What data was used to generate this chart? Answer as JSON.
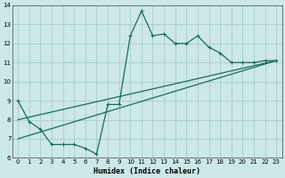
{
  "title": "",
  "xlabel": "Humidex (Indice chaleur)",
  "bg_color": "#cce8e8",
  "grid_color": "#aacccc",
  "line_color": "#1a6b5a",
  "xlim": [
    -0.5,
    23.5
  ],
  "ylim": [
    6,
    14
  ],
  "xticks": [
    0,
    1,
    2,
    3,
    4,
    5,
    6,
    7,
    8,
    9,
    10,
    11,
    12,
    13,
    14,
    15,
    16,
    17,
    18,
    19,
    20,
    21,
    22,
    23
  ],
  "yticks": [
    6,
    7,
    8,
    9,
    10,
    11,
    12,
    13,
    14
  ],
  "line1_x": [
    0,
    1,
    2,
    3,
    4,
    5,
    6,
    7,
    8,
    9,
    10,
    11,
    12,
    13,
    14,
    15,
    16,
    17,
    18,
    19,
    20,
    21,
    22,
    23
  ],
  "line1_y": [
    9.0,
    7.9,
    7.5,
    6.7,
    6.7,
    6.7,
    6.5,
    6.2,
    8.8,
    8.8,
    12.4,
    13.7,
    12.4,
    12.5,
    12.0,
    12.0,
    12.4,
    11.8,
    11.5,
    11.0,
    11.0,
    11.0,
    11.1,
    11.1
  ],
  "line2_x": [
    0,
    23
  ],
  "line2_y": [
    8.0,
    11.1
  ],
  "line3_x": [
    0,
    23
  ],
  "line3_y": [
    7.0,
    11.1
  ]
}
